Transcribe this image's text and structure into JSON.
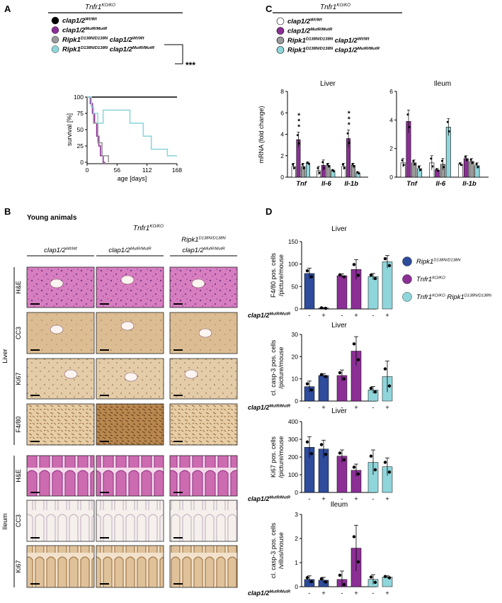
{
  "colors": {
    "black": "#000000",
    "purple": "#8b2f95",
    "gray": "#9a9a9a",
    "cyan": "#8fd6db",
    "navy": "#2e4b9c",
    "he": "#cf6fb4",
    "ihc": "#d9b486"
  },
  "panelA": {
    "letter": "A",
    "header": "Tnfr1",
    "header_sup": "KO/KO",
    "legend": [
      {
        "main": "clap1/2",
        "sup": "Wt/Wt",
        "color": "black"
      },
      {
        "main": "clap1/2",
        "sup": "MutR/MutR",
        "color": "purple"
      },
      {
        "main": "Ripk1",
        "sup": "D138N/D138N",
        "main2": " clap1/2",
        "sup2": "Wt/Wt",
        "color": "gray"
      },
      {
        "main": "Ripk1",
        "sup": "D138N/D138N",
        "main2": " clap1/2",
        "sup2": "MutR/MutR",
        "color": "cyan"
      }
    ],
    "sig": "***",
    "chart_data": {
      "type": "line",
      "xlabel": "age [days]",
      "ylabel": "survival [%]",
      "x_ticks": [
        0,
        56,
        112,
        168
      ],
      "y_ticks": [
        0,
        25,
        50,
        75,
        100
      ],
      "xlim": [
        0,
        168
      ],
      "ylim": [
        0,
        100
      ],
      "series": [
        {
          "name": "clap1/2 Wt/Wt",
          "color": "black",
          "x": [
            0,
            168
          ],
          "y": [
            100,
            100
          ]
        },
        {
          "name": "clap1/2 MutR/MutR",
          "color": "purple",
          "x": [
            0,
            6,
            6,
            10,
            10,
            14,
            14,
            18,
            18,
            22,
            22,
            25,
            25,
            30,
            30,
            34
          ],
          "y": [
            100,
            100,
            90,
            90,
            75,
            75,
            60,
            60,
            40,
            40,
            25,
            25,
            10,
            10,
            0,
            0
          ]
        },
        {
          "name": "Ripk1 D138N/D138N clap1/2 Wt/Wt",
          "color": "gray",
          "x": [
            0,
            8,
            8,
            12,
            12,
            20,
            20,
            28,
            28,
            40,
            40
          ],
          "y": [
            100,
            100,
            85,
            85,
            60,
            60,
            30,
            30,
            10,
            10,
            0
          ]
        },
        {
          "name": "Ripk1 D138N/D138N clap1/2 MutR/MutR",
          "color": "cyan",
          "x": [
            0,
            8,
            8,
            12,
            12,
            20,
            20,
            30,
            30,
            80,
            80,
            105,
            105,
            120,
            120,
            150,
            150,
            168
          ],
          "y": [
            100,
            100,
            85,
            85,
            75,
            75,
            60,
            60,
            80,
            80,
            60,
            60,
            40,
            40,
            20,
            20,
            10,
            10
          ]
        }
      ]
    }
  },
  "panelB": {
    "letter": "B",
    "subtitle": "Young animals",
    "header": "Tnfr1",
    "header_sup": "KO/KO",
    "columns": [
      {
        "main": "clap1/2",
        "sup": "Wt/Wt"
      },
      {
        "main": "clap1/2",
        "sup": "MutR/MutR"
      },
      {
        "main": "Ripk1",
        "sup": "D138N/D138N",
        "main2": "clap1/2",
        "sup2": "MutR/MutR"
      }
    ],
    "groups": [
      {
        "label": "Liver",
        "rows": [
          "H&E",
          "CC3",
          "Ki67",
          "F4/80"
        ]
      },
      {
        "label": "Ileum",
        "rows": [
          "H&E",
          "CC3",
          "Ki67"
        ]
      }
    ]
  },
  "panelC": {
    "letter": "C",
    "header": "Tnfr1",
    "header_sup": "KO/KO",
    "legend": [
      {
        "main": "clap1/2",
        "sup": "Wt/Wt",
        "color": "white"
      },
      {
        "main": "clap1/2",
        "sup": "MutR/MutR",
        "color": "purple"
      },
      {
        "main": "Ripk1",
        "sup": "D138N/D138N",
        "main2": " clap1/2",
        "sup2": "Wt/Wt",
        "color": "gray"
      },
      {
        "main": "Ripk1",
        "sup": "D138N/D138N",
        "main2": " clap1/2",
        "sup2": "MutR/MutR",
        "color": "cyan"
      }
    ],
    "ylabel": "mRNA (fold change)",
    "chart_data": [
      {
        "type": "bar",
        "title": "Liver",
        "categories": [
          "Tnf",
          "Il-6",
          "Il-1b"
        ],
        "y_ticks": [
          0,
          2,
          4,
          6,
          8
        ],
        "ylim": [
          0,
          8
        ],
        "series": [
          {
            "color": "white",
            "values": [
              1.0,
              0.6,
              1.0
            ]
          },
          {
            "color": "purple",
            "values": [
              3.5,
              1.1,
              3.6
            ]
          },
          {
            "color": "gray",
            "values": [
              1.0,
              1.1,
              1.1
            ]
          },
          {
            "color": "cyan",
            "values": [
              1.3,
              0.6,
              0.4
            ]
          }
        ],
        "errors": [
          [
            0.3,
            0.4,
            0.3
          ],
          [
            0.7,
            0.5,
            0.8
          ],
          [
            0.3,
            0.2,
            0.2
          ],
          [
            0.1,
            0.1,
            0.1
          ]
        ],
        "annotations": [
          {
            "category": "Tnf",
            "text": "***"
          },
          {
            "category": "Il-1b",
            "text": "***"
          }
        ]
      },
      {
        "type": "bar",
        "title": "Ileum",
        "categories": [
          "Tnf",
          "Il-6",
          "Il-1b"
        ],
        "y_ticks": [
          0,
          2,
          4,
          6
        ],
        "ylim": [
          0,
          6
        ],
        "series": [
          {
            "color": "white",
            "values": [
              1.0,
              1.0,
              0.9
            ]
          },
          {
            "color": "purple",
            "values": [
              3.9,
              0.5,
              1.3
            ]
          },
          {
            "color": "gray",
            "values": [
              1.0,
              0.9,
              1.1
            ]
          },
          {
            "color": "cyan",
            "values": [
              0.6,
              3.5,
              0.8
            ]
          }
        ],
        "errors": [
          [
            0.3,
            0.5,
            0.1
          ],
          [
            0.8,
            0.1,
            0.2
          ],
          [
            0.2,
            0.4,
            0.2
          ],
          [
            0.2,
            0.6,
            0.2
          ]
        ]
      }
    ]
  },
  "panelD": {
    "letter": "D",
    "legend": [
      {
        "main": "Ripk1",
        "sup": "D138N/D138N",
        "color": "navy"
      },
      {
        "main": "Tnfr1",
        "sup": "KO/KO",
        "color": "purple"
      },
      {
        "main": "Tnfr1",
        "sup": "KO/KO",
        "main2": " Ripk1",
        "sup2": "D138N/D138N",
        "color": "cyan"
      }
    ],
    "xrow_label": {
      "main": "clap1/2",
      "sup": "MutR/MutR"
    },
    "xrow_signs": [
      "-",
      "+",
      "-",
      "+",
      "-",
      "+"
    ],
    "chart_data": [
      {
        "type": "bar",
        "title": "Liver",
        "ylabel": [
          "F4/80 pos. cells",
          "/picture/mouse"
        ],
        "y_ticks": [
          0,
          50,
          100,
          150
        ],
        "ylim": [
          0,
          150
        ],
        "values": [
          79,
          2,
          74,
          88,
          72,
          105
        ],
        "errors": [
          12,
          1,
          4,
          22,
          7,
          14
        ],
        "colors": [
          "navy",
          "navy",
          "purple",
          "purple",
          "cyan",
          "cyan"
        ]
      },
      {
        "type": "bar",
        "title": "Liver",
        "ylabel": [
          "cl. casp-3 pos. cells",
          "/picture/mouse"
        ],
        "y_ticks": [
          0,
          10,
          20,
          30
        ],
        "ylim": [
          0,
          30
        ],
        "values": [
          6.5,
          11.5,
          11.5,
          22.5,
          5,
          11
        ],
        "errors": [
          2.5,
          0.8,
          2.5,
          6.5,
          1.5,
          7
        ],
        "colors": [
          "navy",
          "navy",
          "purple",
          "purple",
          "cyan",
          "cyan"
        ]
      },
      {
        "type": "bar",
        "title": "Liver",
        "ylabel": [
          "Ki67 pos. cells",
          "/picture/mouse"
        ],
        "y_ticks": [
          0,
          100,
          200,
          300,
          400
        ],
        "ylim": [
          0,
          400
        ],
        "values": [
          255,
          245,
          205,
          125,
          170,
          145
        ],
        "errors": [
          60,
          50,
          35,
          35,
          70,
          50
        ],
        "colors": [
          "navy",
          "navy",
          "purple",
          "purple",
          "cyan",
          "cyan"
        ]
      },
      {
        "type": "bar",
        "title": "Ileum",
        "ylabel": [
          "cl. casp-3 pos. cells",
          "/villus/mouse"
        ],
        "y_ticks": [
          0,
          1,
          2,
          3
        ],
        "ylim": [
          0,
          3
        ],
        "values": [
          0.3,
          0.27,
          0.3,
          1.6,
          0.3,
          0.4
        ],
        "errors": [
          0.15,
          0.12,
          0.35,
          0.95,
          0.2,
          0.05
        ],
        "colors": [
          "navy",
          "navy",
          "purple",
          "purple",
          "cyan",
          "cyan"
        ]
      }
    ]
  }
}
